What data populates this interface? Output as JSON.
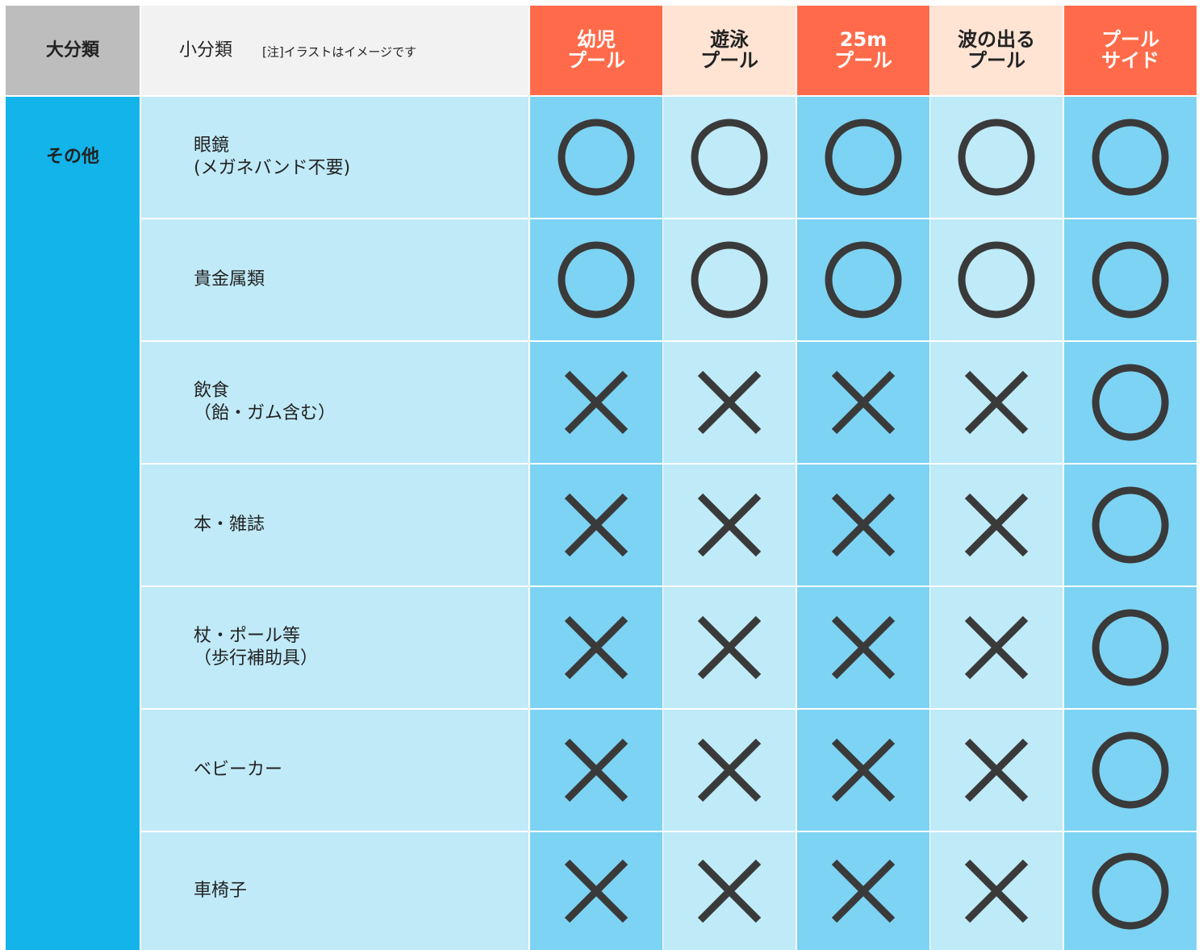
{
  "header": {
    "category": "大分類",
    "subcategory": "小分類",
    "note": "[注]イラストはイメージです",
    "columns": [
      [
        "幼児",
        "プール"
      ],
      [
        "遊泳",
        "プール"
      ],
      [
        "25m",
        "プール"
      ],
      [
        "波の出る",
        "プール"
      ],
      [
        "プール",
        "サイド"
      ]
    ]
  },
  "category": "その他",
  "rows": [
    {
      "label": [
        "眼鏡",
        "(メガネバンド不要)"
      ],
      "allowed": [
        true,
        true,
        true,
        true,
        true
      ]
    },
    {
      "label": [
        "貴金属類"
      ],
      "allowed": [
        true,
        true,
        true,
        true,
        true
      ]
    },
    {
      "label": [
        "飲食",
        "（飴・ガム含む）"
      ],
      "allowed": [
        false,
        false,
        false,
        false,
        true
      ]
    },
    {
      "label": [
        "本・雑誌"
      ],
      "allowed": [
        false,
        false,
        false,
        false,
        true
      ]
    },
    {
      "label": [
        "杖・ポール等",
        "（歩行補助具）"
      ],
      "allowed": [
        false,
        false,
        false,
        false,
        true
      ]
    },
    {
      "label": [
        "ベビーカー"
      ],
      "allowed": [
        false,
        false,
        false,
        false,
        true
      ]
    },
    {
      "label": [
        "車椅子"
      ],
      "allowed": [
        false,
        false,
        false,
        false,
        true
      ]
    }
  ]
}
